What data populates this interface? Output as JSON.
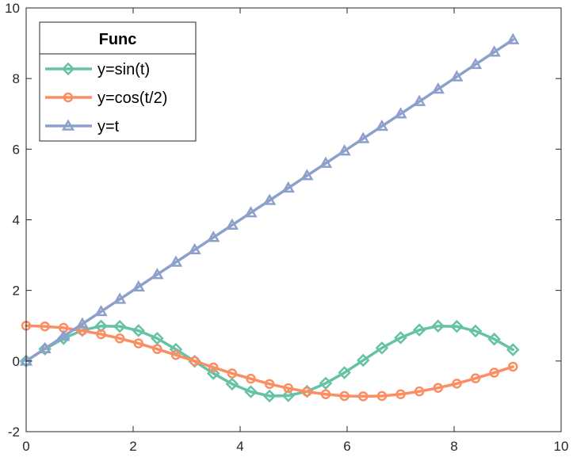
{
  "chart_data": {
    "type": "line",
    "title": "",
    "xlabel": "",
    "ylabel": "",
    "xlim": [
      0,
      10
    ],
    "ylim": [
      -2,
      10
    ],
    "xticks": [
      "0",
      "2",
      "4",
      "6",
      "8",
      "10"
    ],
    "yticks": [
      "-2",
      "0",
      "2",
      "4",
      "6",
      "8",
      "10"
    ],
    "grid": false,
    "legend": {
      "title": "Func",
      "placement": "top-left"
    },
    "x": [
      0,
      0.35,
      0.7,
      1.05,
      1.4,
      1.75,
      2.1,
      2.45,
      2.8,
      3.15,
      3.5,
      3.85,
      4.2,
      4.55,
      4.9,
      5.25,
      5.6,
      5.95,
      6.3,
      6.65,
      7.0,
      7.35,
      7.7,
      8.05,
      8.4,
      8.75,
      9.1
    ],
    "series": [
      {
        "name": "y=sin(t)",
        "color": "#66c2a5",
        "marker": "diamond",
        "values": [
          0,
          0.34,
          0.64,
          0.87,
          0.99,
          0.98,
          0.86,
          0.64,
          0.33,
          -0.01,
          -0.35,
          -0.65,
          -0.87,
          -0.99,
          -0.98,
          -0.86,
          -0.63,
          -0.33,
          0.02,
          0.37,
          0.66,
          0.88,
          0.99,
          0.98,
          0.85,
          0.62,
          0.32
        ]
      },
      {
        "name": "y=cos(t/2)",
        "color": "#fc8d62",
        "marker": "circle",
        "values": [
          1,
          0.98,
          0.94,
          0.86,
          0.76,
          0.64,
          0.5,
          0.34,
          0.17,
          0,
          -0.18,
          -0.35,
          -0.5,
          -0.65,
          -0.77,
          -0.87,
          -0.94,
          -0.99,
          -1,
          -0.99,
          -0.94,
          -0.86,
          -0.76,
          -0.64,
          -0.49,
          -0.33,
          -0.16
        ]
      },
      {
        "name": "y=t",
        "color": "#8da0cb",
        "marker": "triangle",
        "values": [
          0,
          0.35,
          0.7,
          1.05,
          1.4,
          1.75,
          2.1,
          2.45,
          2.8,
          3.15,
          3.5,
          3.85,
          4.2,
          4.55,
          4.9,
          5.25,
          5.6,
          5.95,
          6.3,
          6.65,
          7.0,
          7.35,
          7.7,
          8.05,
          8.4,
          8.75,
          9.1
        ]
      }
    ]
  }
}
